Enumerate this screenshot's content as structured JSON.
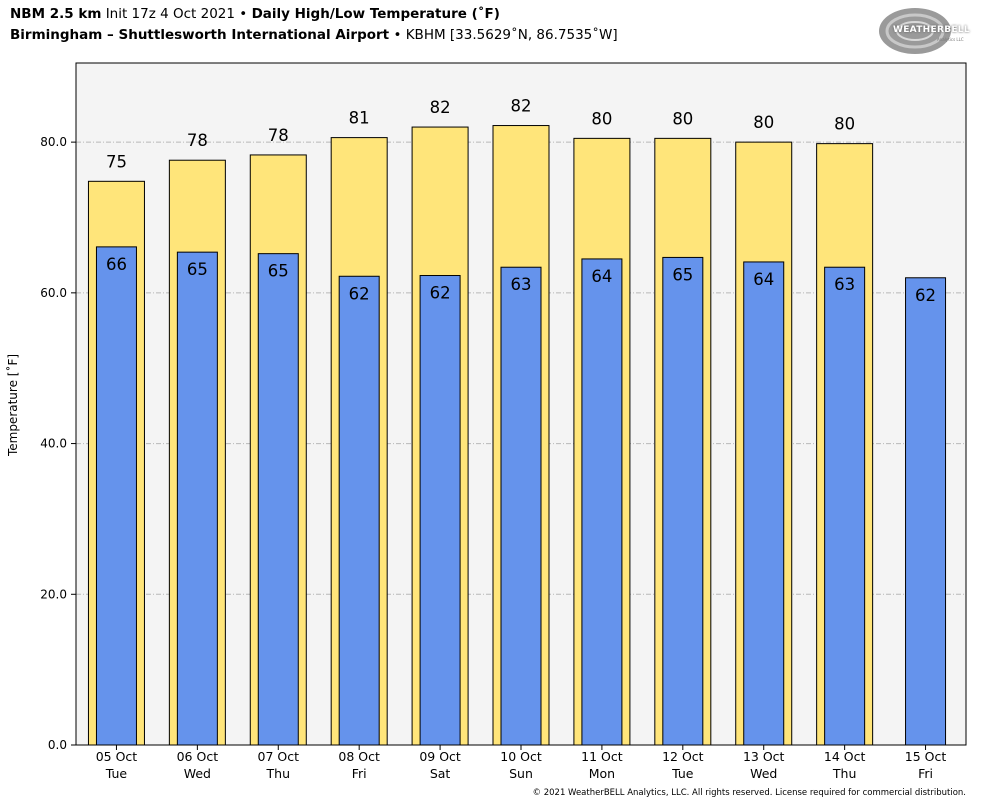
{
  "header": {
    "model": "NBM 2.5 km",
    "init": "Init 17z 4 Oct 2021",
    "sep": "•",
    "product": "Daily High/Low Temperature (˚F)",
    "station_name": "Birmingham – Shuttlesworth International Airport",
    "station_info": "KBHM [33.5629˚N, 86.7535˚W]"
  },
  "logo": {
    "text": "WEATHERBELL",
    "sub": "Analytics LLC"
  },
  "footer": "© 2021 WeatherBELL Analytics, LLC. All rights reserved. License required for commercial distribution.",
  "colors": {
    "high": "#ffe57a",
    "low": "#6593ec",
    "plot_bg": "#f4f4f4",
    "grid": "#b8b8b8"
  },
  "chart_data": {
    "type": "bar",
    "title": "Daily High/Low Temperature (˚F)",
    "ylabel": "Temperature [˚F]",
    "xlabel": "",
    "ylim": [
      0,
      90.5
    ],
    "yticks": [
      0,
      20,
      40,
      60,
      80
    ],
    "ytick_labels": [
      "0.0",
      "20.0",
      "40.0",
      "60.0",
      "80.0"
    ],
    "grid": true,
    "categories": [
      {
        "date": "05 Oct",
        "day": "Tue"
      },
      {
        "date": "06 Oct",
        "day": "Wed"
      },
      {
        "date": "07 Oct",
        "day": "Thu"
      },
      {
        "date": "08 Oct",
        "day": "Fri"
      },
      {
        "date": "09 Oct",
        "day": "Sat"
      },
      {
        "date": "10 Oct",
        "day": "Sun"
      },
      {
        "date": "11 Oct",
        "day": "Mon"
      },
      {
        "date": "12 Oct",
        "day": "Tue"
      },
      {
        "date": "13 Oct",
        "day": "Wed"
      },
      {
        "date": "14 Oct",
        "day": "Thu"
      },
      {
        "date": "15 Oct",
        "day": "Fri"
      }
    ],
    "series": [
      {
        "name": "High",
        "values": [
          74.8,
          77.6,
          78.3,
          80.6,
          82.0,
          82.2,
          80.5,
          80.5,
          80.0,
          79.8,
          null
        ],
        "labels": [
          "75",
          "78",
          "78",
          "81",
          "82",
          "82",
          "80",
          "80",
          "80",
          "80",
          ""
        ]
      },
      {
        "name": "Low",
        "values": [
          66.1,
          65.4,
          65.2,
          62.2,
          62.3,
          63.4,
          64.5,
          64.7,
          64.1,
          63.4,
          62.0
        ],
        "labels": [
          "66",
          "65",
          "65",
          "62",
          "62",
          "63",
          "64",
          "65",
          "64",
          "63",
          "62"
        ]
      }
    ]
  }
}
